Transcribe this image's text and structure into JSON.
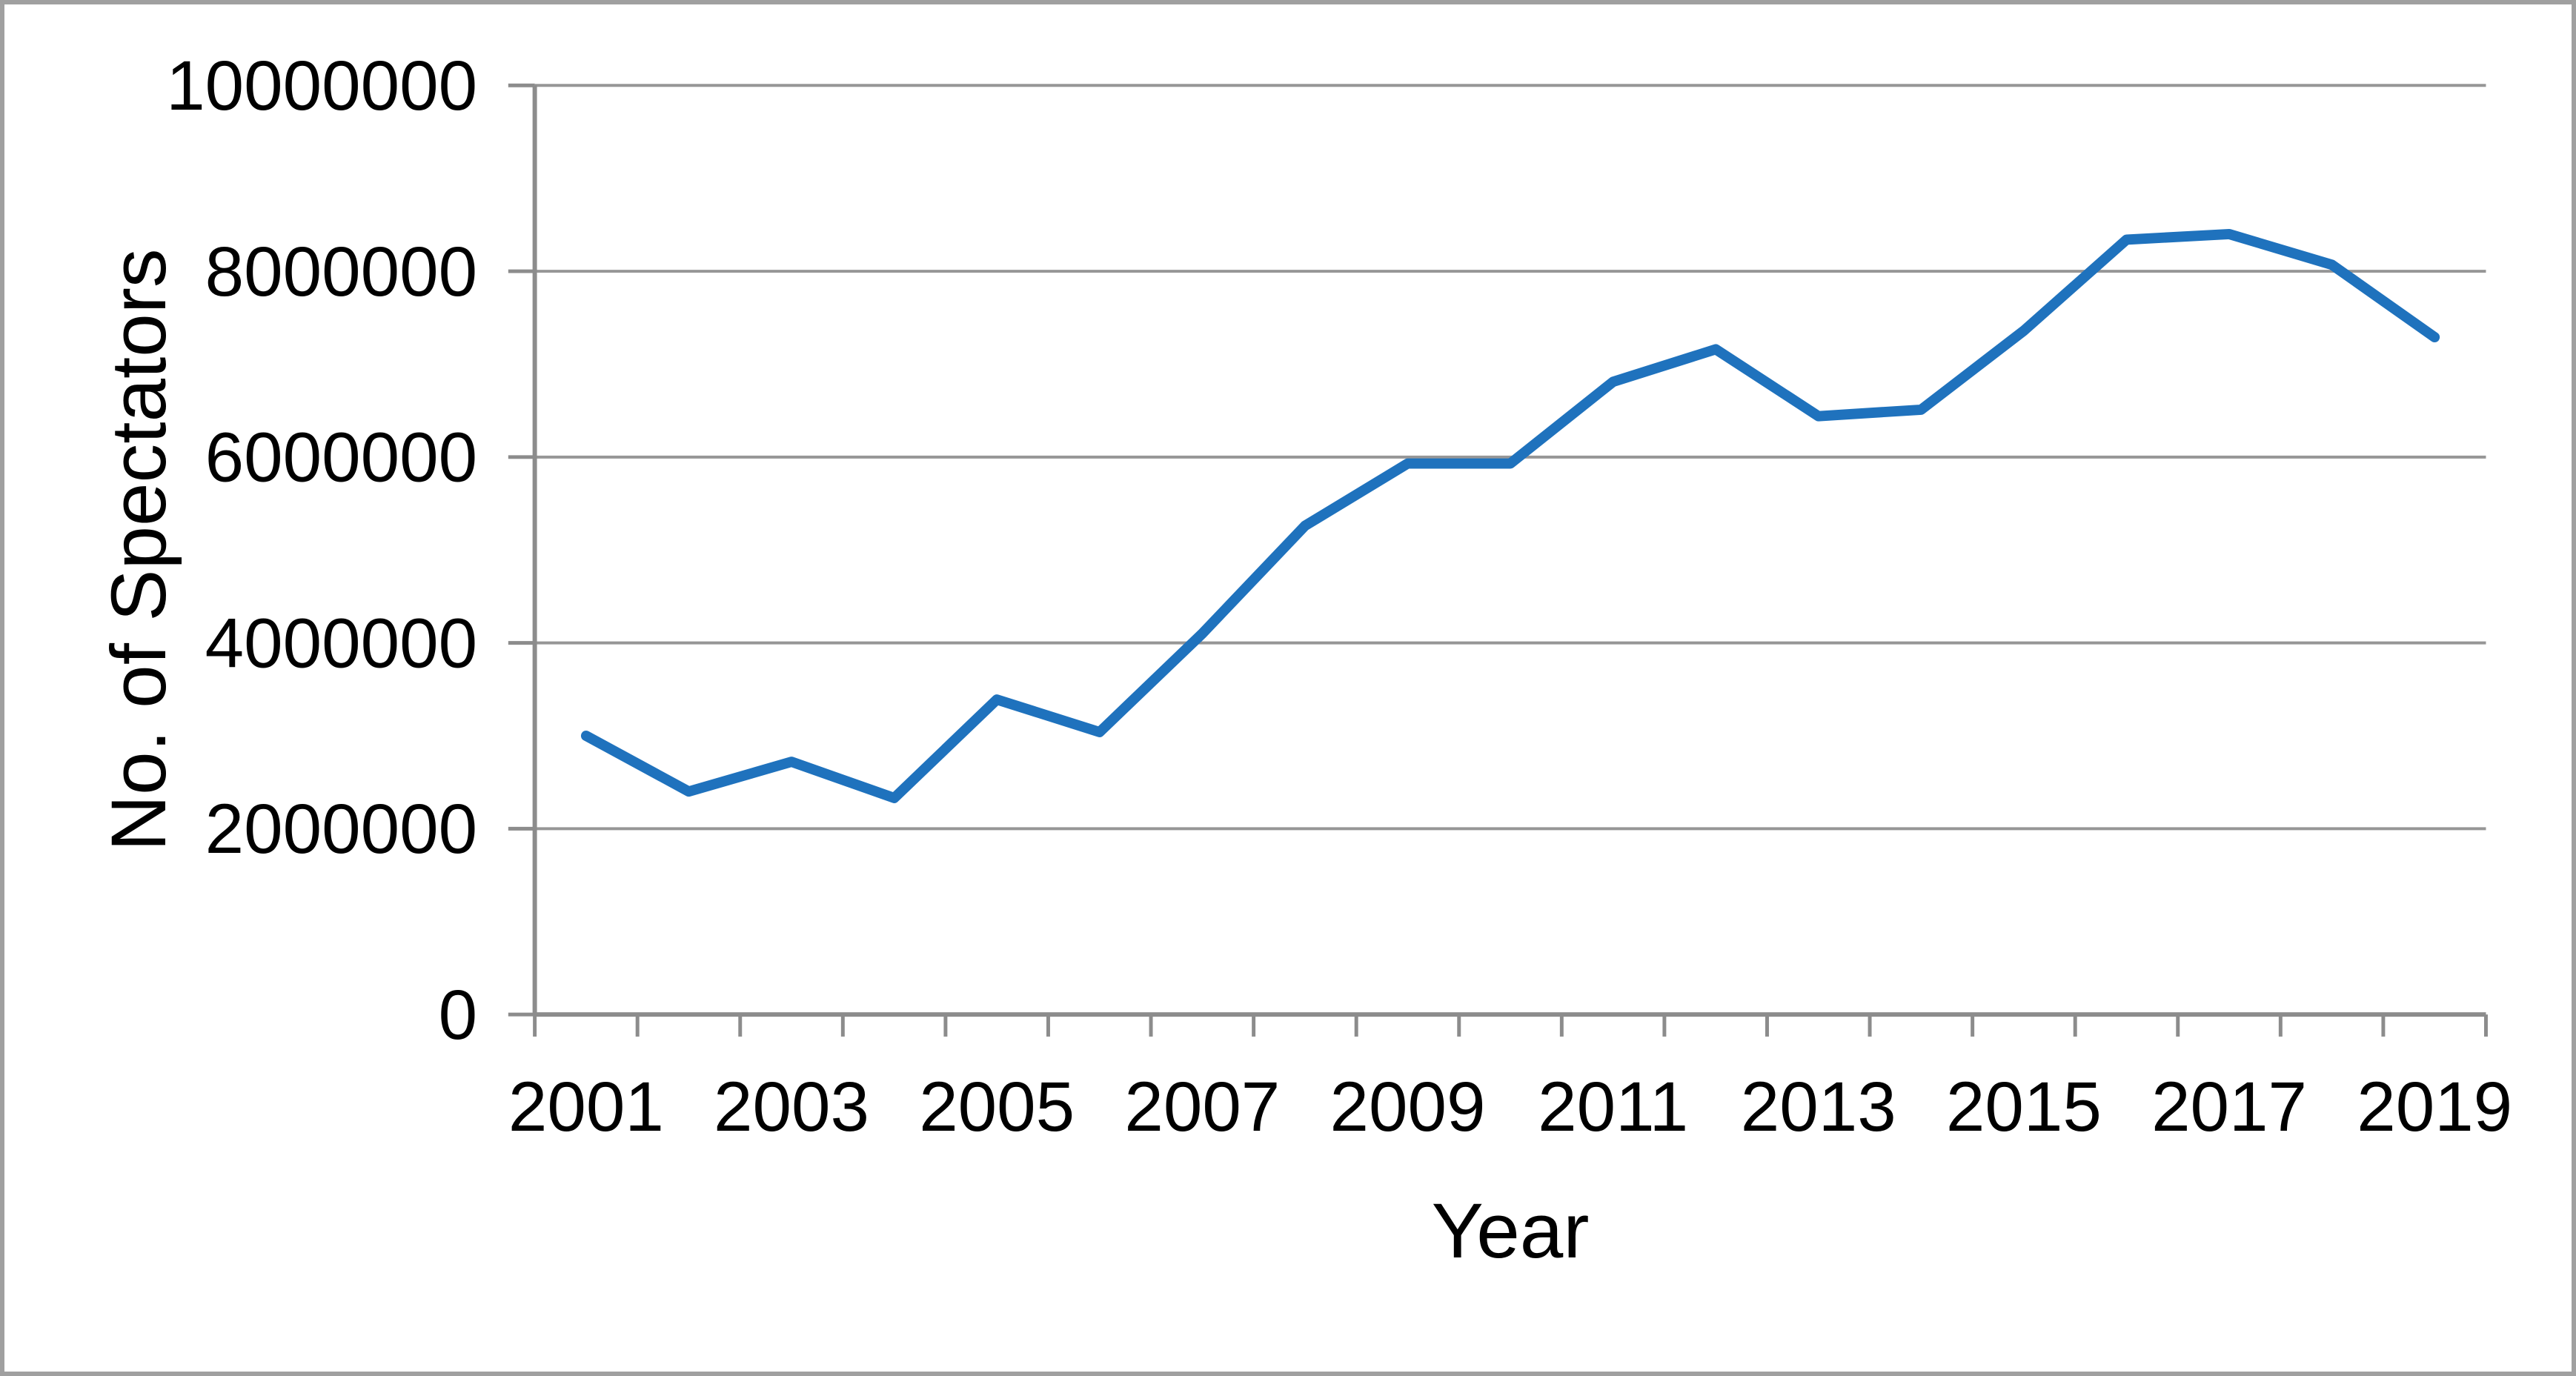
{
  "chart_data": {
    "type": "line",
    "title": "",
    "xlabel": "Year",
    "ylabel": "No. of Spectators",
    "x": [
      2001,
      2002,
      2003,
      2004,
      2005,
      2006,
      2007,
      2008,
      2009,
      2010,
      2011,
      2012,
      2013,
      2014,
      2015,
      2016,
      2017,
      2018,
      2019
    ],
    "series": [
      {
        "name": "No. of Spectators",
        "values": [
          3000000,
          2400000,
          2720000,
          2330000,
          3390000,
          3040000,
          4100000,
          5260000,
          5930000,
          5930000,
          6810000,
          7160000,
          6440000,
          6510000,
          7360000,
          8340000,
          8400000,
          8070000,
          7290000
        ]
      }
    ],
    "x_tick_labels": [
      "2001",
      "2003",
      "2005",
      "2007",
      "2009",
      "2011",
      "2013",
      "2015",
      "2017",
      "2019"
    ],
    "y_ticks": [
      0,
      2000000,
      4000000,
      6000000,
      8000000,
      10000000
    ],
    "y_tick_labels": [
      "0",
      "2000000",
      "4000000",
      "6000000",
      "8000000",
      "10000000"
    ],
    "ylim": [
      0,
      10000000
    ],
    "grid": "horizontal",
    "legend_position": "none",
    "line_color": "#1f72bd",
    "grid_color": "#969696",
    "axis_color": "#8c8c8c",
    "border_color": "#a0a0a0",
    "text_color": "#000000",
    "background_color": "#ffffff"
  }
}
